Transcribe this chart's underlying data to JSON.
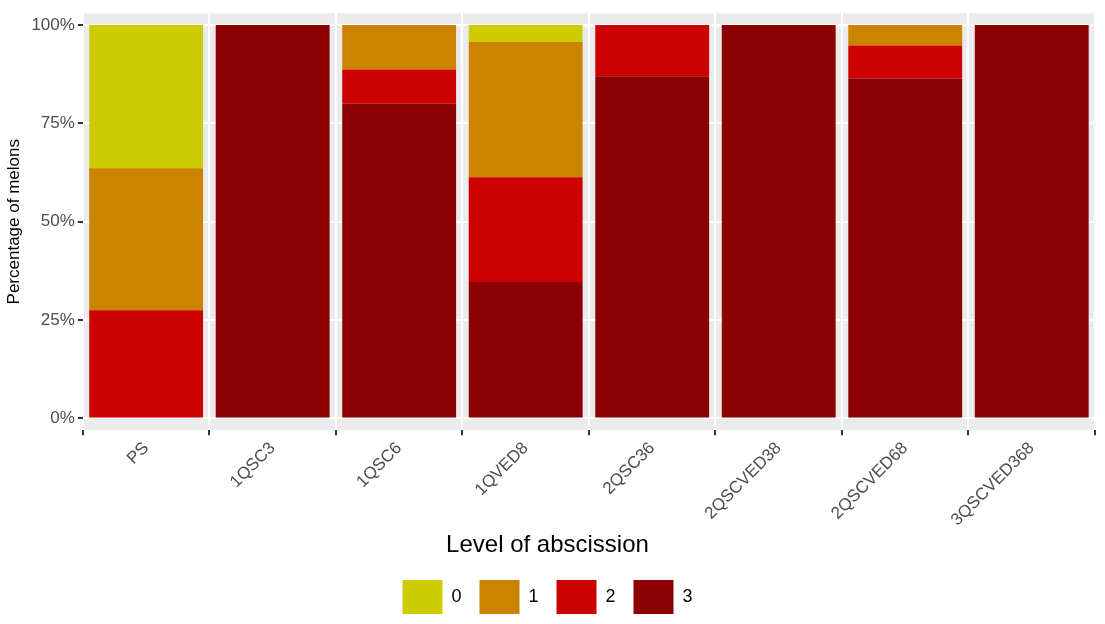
{
  "chart_data": {
    "type": "bar",
    "stacked": true,
    "ylabel": "Percentage of melons",
    "legend_title": "Level of abscission",
    "legend": "bottom",
    "grid": true,
    "categories": [
      "PS",
      "1QSC3",
      "1QSC6",
      "1QVED8",
      "2QSC36",
      "2QSCVED38",
      "2QSCVED68",
      "3QSCVED368"
    ],
    "ylim": [
      -3,
      103
    ],
    "yticks": [
      {
        "value": 0,
        "label": "0%"
      },
      {
        "value": 25,
        "label": "25%"
      },
      {
        "value": 50,
        "label": "50%"
      },
      {
        "value": 75,
        "label": "75%"
      },
      {
        "value": 100,
        "label": "100%"
      }
    ],
    "series": [
      {
        "name": "3",
        "color": "#8b0000",
        "values": [
          0,
          100,
          80,
          34.7,
          87,
          100,
          86.4,
          100
        ]
      },
      {
        "name": "2",
        "color": "#cc0000",
        "values": [
          27.5,
          0,
          8.7,
          26.6,
          13,
          0,
          8.4,
          0
        ]
      },
      {
        "name": "1",
        "color": "#cc8400",
        "values": [
          36.1,
          0,
          11.3,
          34.4,
          0,
          0,
          5.2,
          0
        ]
      },
      {
        "name": "0",
        "color": "#cccc00",
        "values": [
          36.4,
          0,
          0,
          4.3,
          0,
          0,
          0,
          0
        ]
      }
    ]
  }
}
